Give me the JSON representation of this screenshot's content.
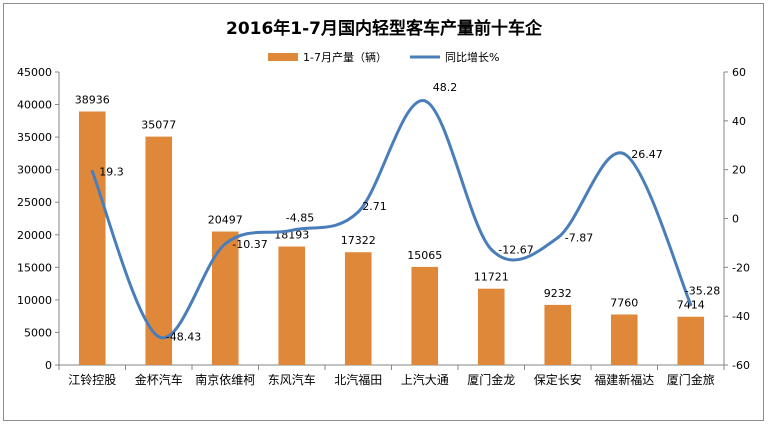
{
  "chart_data": {
    "type": "bar",
    "title": "2016年1-7月国内轻型客车产量前十车企",
    "categories": [
      "江铃控股",
      "金杯汽车",
      "南京依维柯",
      "东风汽车",
      "北汽福田",
      "上汽大通",
      "厦门金龙",
      "保定长安",
      "福建新福达",
      "厦门金旅"
    ],
    "series": [
      {
        "name": "1-7月产量（辆）",
        "type": "bar",
        "axis": "left",
        "color": "#E0883A",
        "values": [
          38936,
          35077,
          20497,
          18193,
          17322,
          15065,
          11721,
          9232,
          7760,
          7414
        ],
        "labels": [
          "38936",
          "35077",
          "20497",
          "18193",
          "17322",
          "15065",
          "11721",
          "9232",
          "7760",
          "7414"
        ]
      },
      {
        "name": "同比增长%",
        "type": "line",
        "axis": "right",
        "smooth": true,
        "color": "#4A7EBB",
        "values": [
          19.3,
          -48.43,
          -10.37,
          -4.85,
          2.71,
          48.2,
          -12.67,
          -7.87,
          26.47,
          -35.28
        ],
        "labels": [
          "19.3",
          "-48.43",
          "-10.37",
          "-4.85",
          "2.71",
          "48.2",
          "-12.67",
          "-7.87",
          "26.47",
          "-35.28"
        ]
      }
    ],
    "yleft": {
      "min": 0,
      "max": 45000,
      "step": 5000,
      "ticks": [
        "0",
        "5000",
        "10000",
        "15000",
        "20000",
        "25000",
        "30000",
        "35000",
        "40000",
        "45000"
      ]
    },
    "yright": {
      "min": -60,
      "max": 60,
      "step": 20,
      "ticks": [
        "-60",
        "-40",
        "-20",
        "0",
        "20",
        "40",
        "60"
      ]
    },
    "legend": "top-center",
    "grid": false
  }
}
